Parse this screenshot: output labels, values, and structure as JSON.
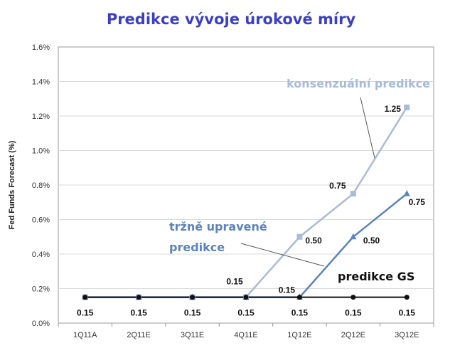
{
  "chart_data": {
    "type": "line",
    "title": "Predikce vývoje úrokové míry",
    "ylabel": "Fed Funds Forecast (%)",
    "xlabel": "",
    "categories": [
      "1Q11A",
      "2Q11E",
      "3Q11E",
      "4Q11E",
      "1Q12E",
      "2Q12E",
      "3Q12E"
    ],
    "ylim": [
      0,
      1.6
    ],
    "yticks": [
      0,
      0.2,
      0.4,
      0.6,
      0.8,
      1.0,
      1.2,
      1.4,
      1.6
    ],
    "ytick_labels": [
      "0.0%",
      "0.2%",
      "0.4%",
      "0.6%",
      "0.8%",
      "1.0%",
      "1.2%",
      "1.4%",
      "1.6%"
    ],
    "grid": true,
    "series": [
      {
        "name": "konsenzuální predikce",
        "color": "#a9bbd6",
        "marker": "square",
        "values": [
          0.15,
          0.15,
          0.15,
          0.15,
          0.5,
          0.75,
          1.25
        ],
        "data_labels": [
          "",
          "",
          "",
          "0.15",
          "0.50",
          "0.75",
          "1.25"
        ]
      },
      {
        "name": "tržně upravené predikce",
        "color": "#5c83bd",
        "marker": "triangle",
        "values": [
          0.15,
          0.15,
          0.15,
          0.15,
          0.15,
          0.5,
          0.75
        ],
        "data_labels": [
          "",
          "",
          "",
          "",
          "0.15",
          "0.50",
          "0.75"
        ]
      },
      {
        "name": "predikce GS",
        "color": "#111111",
        "marker": "circle",
        "values": [
          0.15,
          0.15,
          0.15,
          0.15,
          0.15,
          0.15,
          0.15
        ],
        "data_labels": [
          "0.15",
          "0.15",
          "0.15",
          "0.15",
          "0.15",
          "0.15",
          "0.15"
        ]
      }
    ],
    "annotations": [
      {
        "text": "konsenzuální predikce",
        "series": 0
      },
      {
        "text": "tržně upravené",
        "text2": "predikce",
        "series": 1
      },
      {
        "text": "predikce GS",
        "series": 2
      }
    ],
    "colors": {
      "title": "#3a3fc4",
      "consensus_label": "#a9bbd6",
      "market_label": "#5c83bd",
      "gs_label": "#111111"
    }
  }
}
